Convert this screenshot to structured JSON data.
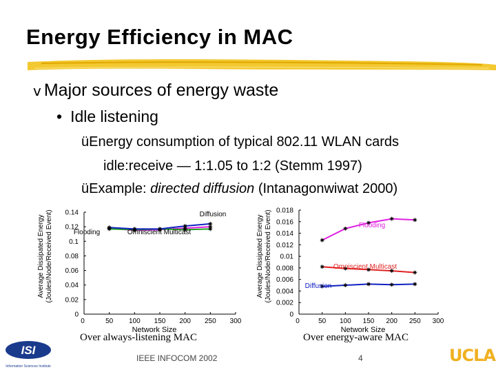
{
  "slide": {
    "title": "Energy Efficiency in MAC",
    "bullet1": "Major sources of energy waste",
    "bullet2": "Idle listening",
    "sub1": "Energy consumption of typical 802.11 WLAN cards",
    "sub1b": "idle:receive — 1:1.05 to 1:2 (Stemm 1997)",
    "sub2_prefix": "Example: ",
    "sub2_italic": "directed diffusion",
    "sub2_suffix": " (Intanagonwiwat 2000)",
    "check": "ü",
    "diamond": "v",
    "dot": "•",
    "footer_conf": "IEEE INFOCOM 2002",
    "footer_page": "4",
    "logo_ucla": "UCLA",
    "logo_isi": "ISI",
    "logo_isi_sub": "Information Sciences Institute"
  },
  "colors": {
    "magenta": "#e020e0",
    "red": "#e02020",
    "blue": "#1020c0",
    "green": "#20a020",
    "logo_gold": "#f0b020"
  },
  "chart_data": [
    {
      "type": "line",
      "title": "Over always-listening MAC",
      "xlabel": "Network Size",
      "ylabel": "Average Dissipated Energy (Joules/Node/Received Event)",
      "xlim": [
        0,
        300
      ],
      "ylim": [
        0,
        0.14
      ],
      "xticks": [
        "0",
        "50",
        "100",
        "150",
        "200",
        "250",
        "300"
      ],
      "yticks": [
        "0",
        "0.02",
        "0.04",
        "0.06",
        "0.08",
        "0.1",
        "0.12",
        "0.14"
      ],
      "series": [
        {
          "name": "Flooding",
          "color": "#e020e0",
          "x": [
            50,
            100,
            150,
            200,
            250
          ],
          "y": [
            0.118,
            0.115,
            0.116,
            0.118,
            0.12
          ]
        },
        {
          "name": "Omniscient Multicast",
          "color": "#20a020",
          "x": [
            50,
            100,
            150,
            200,
            250
          ],
          "y": [
            0.117,
            0.116,
            0.117,
            0.116,
            0.117
          ]
        },
        {
          "name": "Diffusion",
          "color": "#1020c0",
          "x": [
            50,
            100,
            150,
            200,
            250
          ],
          "y": [
            0.119,
            0.117,
            0.117,
            0.121,
            0.124
          ]
        }
      ],
      "annotations": [
        "Diffusion",
        "Flooding",
        "Omniscient Multicast"
      ]
    },
    {
      "type": "line",
      "title": "Over energy-aware MAC",
      "xlabel": "Network Size",
      "ylabel": "Average Dissipated Energy (Joules/Node/Received Event)",
      "xlim": [
        0,
        300
      ],
      "ylim": [
        0,
        0.018
      ],
      "xticks": [
        "0",
        "50",
        "100",
        "150",
        "200",
        "250",
        "300"
      ],
      "yticks": [
        "0",
        "0.002",
        "0.004",
        "0.006",
        "0.008",
        "0.01",
        "0.012",
        "0.014",
        "0.016",
        "0.018"
      ],
      "series": [
        {
          "name": "Flooding",
          "color": "#e020e0",
          "x": [
            50,
            100,
            150,
            200,
            250
          ],
          "y": [
            0.0128,
            0.0148,
            0.0158,
            0.0165,
            0.0163
          ]
        },
        {
          "name": "Omniscient Multicast",
          "color": "#e02020",
          "x": [
            50,
            100,
            150,
            200,
            250
          ],
          "y": [
            0.0082,
            0.0079,
            0.0077,
            0.0075,
            0.0072
          ]
        },
        {
          "name": "Diffusion",
          "color": "#1020c0",
          "x": [
            50,
            100,
            150,
            200,
            250
          ],
          "y": [
            0.0048,
            0.005,
            0.0052,
            0.0051,
            0.0052
          ]
        }
      ],
      "annotations": [
        "Flooding",
        "Omniscient Multicast",
        "Diffusion"
      ]
    }
  ]
}
